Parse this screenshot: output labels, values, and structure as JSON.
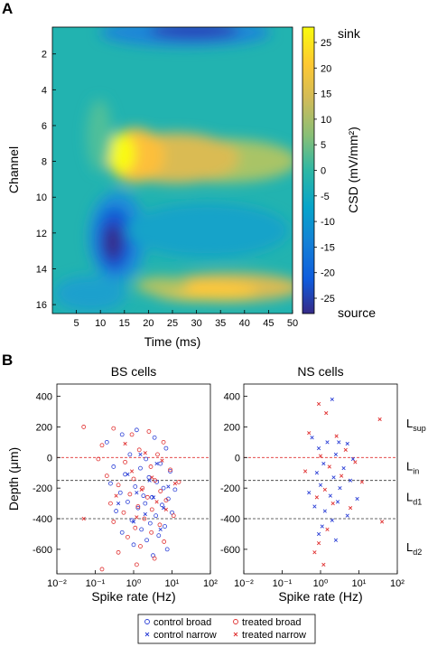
{
  "panels": {
    "a_label": "A",
    "b_label": "B"
  },
  "chart_data": [
    {
      "type": "heatmap",
      "xlabel": "Time (ms)",
      "ylabel": "Channel",
      "xticks": [
        5,
        10,
        15,
        20,
        25,
        30,
        35,
        40,
        45,
        50
      ],
      "xlim": [
        0,
        50
      ],
      "yticks": [
        2,
        4,
        6,
        8,
        10,
        12,
        14,
        16
      ],
      "ylim": [
        0.5,
        16.5
      ],
      "y_reversed": true,
      "colorbar": {
        "label": "CSD (mV/mm²)",
        "ticks": [
          25,
          20,
          15,
          10,
          5,
          0,
          -5,
          -10,
          -15,
          -20,
          -25
        ],
        "range": [
          -28,
          28
        ],
        "top_label": "sink",
        "bottom_label": "source",
        "colormap": "parula"
      },
      "features": [
        {
          "kind": "sink",
          "time_ms": [
            14,
            40
          ],
          "channel": 7.5,
          "peak": 28
        },
        {
          "kind": "sink",
          "time_ms": [
            20,
            50
          ],
          "channel": 15.3,
          "peak": 24
        },
        {
          "kind": "source",
          "time_ms": [
            10,
            20
          ],
          "channel": 12.5,
          "peak": -28
        },
        {
          "kind": "source",
          "time_ms": [
            20,
            50
          ],
          "channel": 1.0,
          "peak": -22
        }
      ]
    },
    {
      "type": "scatter",
      "title": "BS cells",
      "xlabel": "Spike rate (Hz)",
      "ylabel": "Depth (μm)",
      "xscale": "log",
      "xlim": [
        0.01,
        100
      ],
      "xtick_labels": [
        "10⁻²",
        "10⁻¹",
        "10⁰",
        "10¹",
        "10²"
      ],
      "ylim": [
        -760,
        480
      ],
      "yticks": [
        400,
        200,
        0,
        -200,
        -400,
        -600
      ],
      "reference_lines": [
        {
          "y": 0,
          "color": "#e03030"
        },
        {
          "y": -150,
          "color": "#333333"
        },
        {
          "y": -400,
          "color": "#333333"
        }
      ],
      "series": [
        {
          "name": "control broad",
          "marker": "circle",
          "color": "#2b3fd6",
          "points": [
            [
              0.2,
              100
            ],
            [
              0.5,
              150
            ],
            [
              1.2,
              180
            ],
            [
              3.5,
              130
            ],
            [
              7,
              60
            ],
            [
              0.8,
              20
            ],
            [
              2.1,
              -10
            ],
            [
              5,
              -40
            ],
            [
              0.3,
              -60
            ],
            [
              1.5,
              -70
            ],
            [
              9,
              -90
            ],
            [
              0.6,
              -110
            ],
            [
              2.5,
              -130
            ],
            [
              4,
              -160
            ],
            [
              0.25,
              -170
            ],
            [
              1.1,
              -190
            ],
            [
              6,
              -200
            ],
            [
              12,
              -210
            ],
            [
              0.45,
              -230
            ],
            [
              1.8,
              -250
            ],
            [
              3,
              -260
            ],
            [
              8,
              -270
            ],
            [
              0.7,
              -290
            ],
            [
              2,
              -300
            ],
            [
              5.5,
              -310
            ],
            [
              1.3,
              -330
            ],
            [
              0.35,
              -350
            ],
            [
              10,
              -360
            ],
            [
              3.8,
              -380
            ],
            [
              0.9,
              -410
            ],
            [
              2.7,
              -430
            ],
            [
              6.5,
              -450
            ],
            [
              1.6,
              -470
            ],
            [
              0.5,
              -490
            ],
            [
              4.5,
              -510
            ],
            [
              2.2,
              -540
            ],
            [
              1,
              -570
            ],
            [
              7.5,
              -600
            ],
            [
              3.2,
              -640
            ]
          ]
        },
        {
          "name": "control narrow",
          "marker": "x",
          "color": "#2b3fd6",
          "points": [
            [
              1.5,
              20
            ],
            [
              4,
              -40
            ],
            [
              0.7,
              -110
            ],
            [
              2.6,
              -150
            ],
            [
              8,
              -190
            ],
            [
              1.2,
              -230
            ],
            [
              3.3,
              -260
            ],
            [
              0.4,
              -300
            ],
            [
              6,
              -330
            ],
            [
              2,
              -370
            ],
            [
              1,
              -420
            ],
            [
              5,
              -470
            ]
          ]
        },
        {
          "name": "treated broad",
          "marker": "circle",
          "color": "#e03030",
          "points": [
            [
              0.05,
              200
            ],
            [
              0.3,
              190
            ],
            [
              0.9,
              150
            ],
            [
              2.5,
              170
            ],
            [
              6,
              100
            ],
            [
              0.15,
              80
            ],
            [
              1.4,
              50
            ],
            [
              4.2,
              20
            ],
            [
              0.12,
              -10
            ],
            [
              0.6,
              -30
            ],
            [
              2.8,
              -60
            ],
            [
              9,
              -80
            ],
            [
              0.2,
              -120
            ],
            [
              1,
              -140
            ],
            [
              3.6,
              -150
            ],
            [
              15,
              -160
            ],
            [
              0.4,
              -180
            ],
            [
              1.7,
              -200
            ],
            [
              5,
              -220
            ],
            [
              0.8,
              -240
            ],
            [
              2.3,
              -260
            ],
            [
              7,
              -280
            ],
            [
              0.25,
              -300
            ],
            [
              1.3,
              -320
            ],
            [
              3,
              -340
            ],
            [
              0.55,
              -360
            ],
            [
              11,
              -380
            ],
            [
              1.9,
              -400
            ],
            [
              0.3,
              -420
            ],
            [
              4.8,
              -440
            ],
            [
              1.1,
              -460
            ],
            [
              2.9,
              -490
            ],
            [
              0.7,
              -520
            ],
            [
              6.2,
              -550
            ],
            [
              1.5,
              -580
            ],
            [
              0.4,
              -620
            ],
            [
              3.5,
              -660
            ],
            [
              1.2,
              -700
            ],
            [
              0.15,
              -730
            ]
          ]
        },
        {
          "name": "treated narrow",
          "marker": "x",
          "color": "#e03030",
          "points": [
            [
              0.05,
              -400
            ],
            [
              0.6,
              90
            ],
            [
              2,
              30
            ],
            [
              5.5,
              -20
            ],
            [
              0.9,
              -90
            ],
            [
              3,
              -130
            ],
            [
              12,
              -170
            ],
            [
              1.6,
              -210
            ],
            [
              0.35,
              -250
            ],
            [
              4,
              -290
            ],
            [
              7,
              -340
            ],
            [
              1.2,
              -390
            ]
          ]
        }
      ]
    },
    {
      "type": "scatter",
      "title": "NS cells",
      "xlabel": "Spike rate (Hz)",
      "ylabel": "",
      "xscale": "log",
      "xlim": [
        0.01,
        100
      ],
      "xtick_labels": [
        "10⁻²",
        "10⁻¹",
        "10⁰",
        "10¹",
        "10²"
      ],
      "ylim": [
        -760,
        480
      ],
      "yticks": [
        400,
        200,
        0,
        -200,
        -400,
        -600
      ],
      "reference_lines": [
        {
          "y": 0,
          "color": "#e03030"
        },
        {
          "y": -150,
          "color": "#333333"
        },
        {
          "y": -400,
          "color": "#333333"
        }
      ],
      "layer_labels": [
        {
          "text": "L",
          "sub": "sup",
          "y": 220
        },
        {
          "text": "L",
          "sub": "in",
          "y": -60
        },
        {
          "text": "L",
          "sub": "d1",
          "y": -260
        },
        {
          "text": "L",
          "sub": "d2",
          "y": -590
        }
      ],
      "series": [
        {
          "name": "control narrow",
          "marker": "x",
          "color": "#2b3fd6",
          "points": [
            [
              2,
              380
            ],
            [
              0.6,
              130
            ],
            [
              1.5,
              100
            ],
            [
              3,
              100
            ],
            [
              5,
              90
            ],
            [
              0.9,
              60
            ],
            [
              2.5,
              20
            ],
            [
              7,
              -10
            ],
            [
              1.2,
              -40
            ],
            [
              4,
              -70
            ],
            [
              0.8,
              -100
            ],
            [
              2.2,
              -130
            ],
            [
              6,
              -150
            ],
            [
              1,
              -180
            ],
            [
              3.2,
              -200
            ],
            [
              0.5,
              -230
            ],
            [
              1.8,
              -250
            ],
            [
              9,
              -270
            ],
            [
              2.8,
              -290
            ],
            [
              0.7,
              -320
            ],
            [
              1.3,
              -350
            ],
            [
              5,
              -380
            ],
            [
              2,
              -410
            ],
            [
              1.1,
              -450
            ],
            [
              0.9,
              -500
            ],
            [
              2.5,
              -540
            ]
          ]
        },
        {
          "name": "treated narrow",
          "marker": "x",
          "color": "#e03030",
          "points": [
            [
              0.9,
              350
            ],
            [
              1.4,
              290
            ],
            [
              35,
              250
            ],
            [
              0.5,
              160
            ],
            [
              2.6,
              140
            ],
            [
              4.5,
              50
            ],
            [
              1,
              10
            ],
            [
              8,
              -30
            ],
            [
              1.7,
              -60
            ],
            [
              0.4,
              -90
            ],
            [
              3.5,
              -120
            ],
            [
              12,
              -160
            ],
            [
              1.3,
              -210
            ],
            [
              0.8,
              -260
            ],
            [
              2.1,
              -300
            ],
            [
              6,
              -330
            ],
            [
              40,
              -420
            ],
            [
              1.5,
              -470
            ],
            [
              0.9,
              -560
            ],
            [
              0.7,
              -620
            ],
            [
              1.2,
              -700
            ]
          ]
        }
      ]
    }
  ],
  "legend": {
    "entries": [
      {
        "label": "control broad",
        "marker": "circle",
        "color": "#2b3fd6"
      },
      {
        "label": "treated broad",
        "marker": "circle",
        "color": "#e03030"
      },
      {
        "label": "control narrow",
        "marker": "x",
        "color": "#2b3fd6"
      },
      {
        "label": "treated narrow",
        "marker": "x",
        "color": "#e03030"
      }
    ]
  }
}
